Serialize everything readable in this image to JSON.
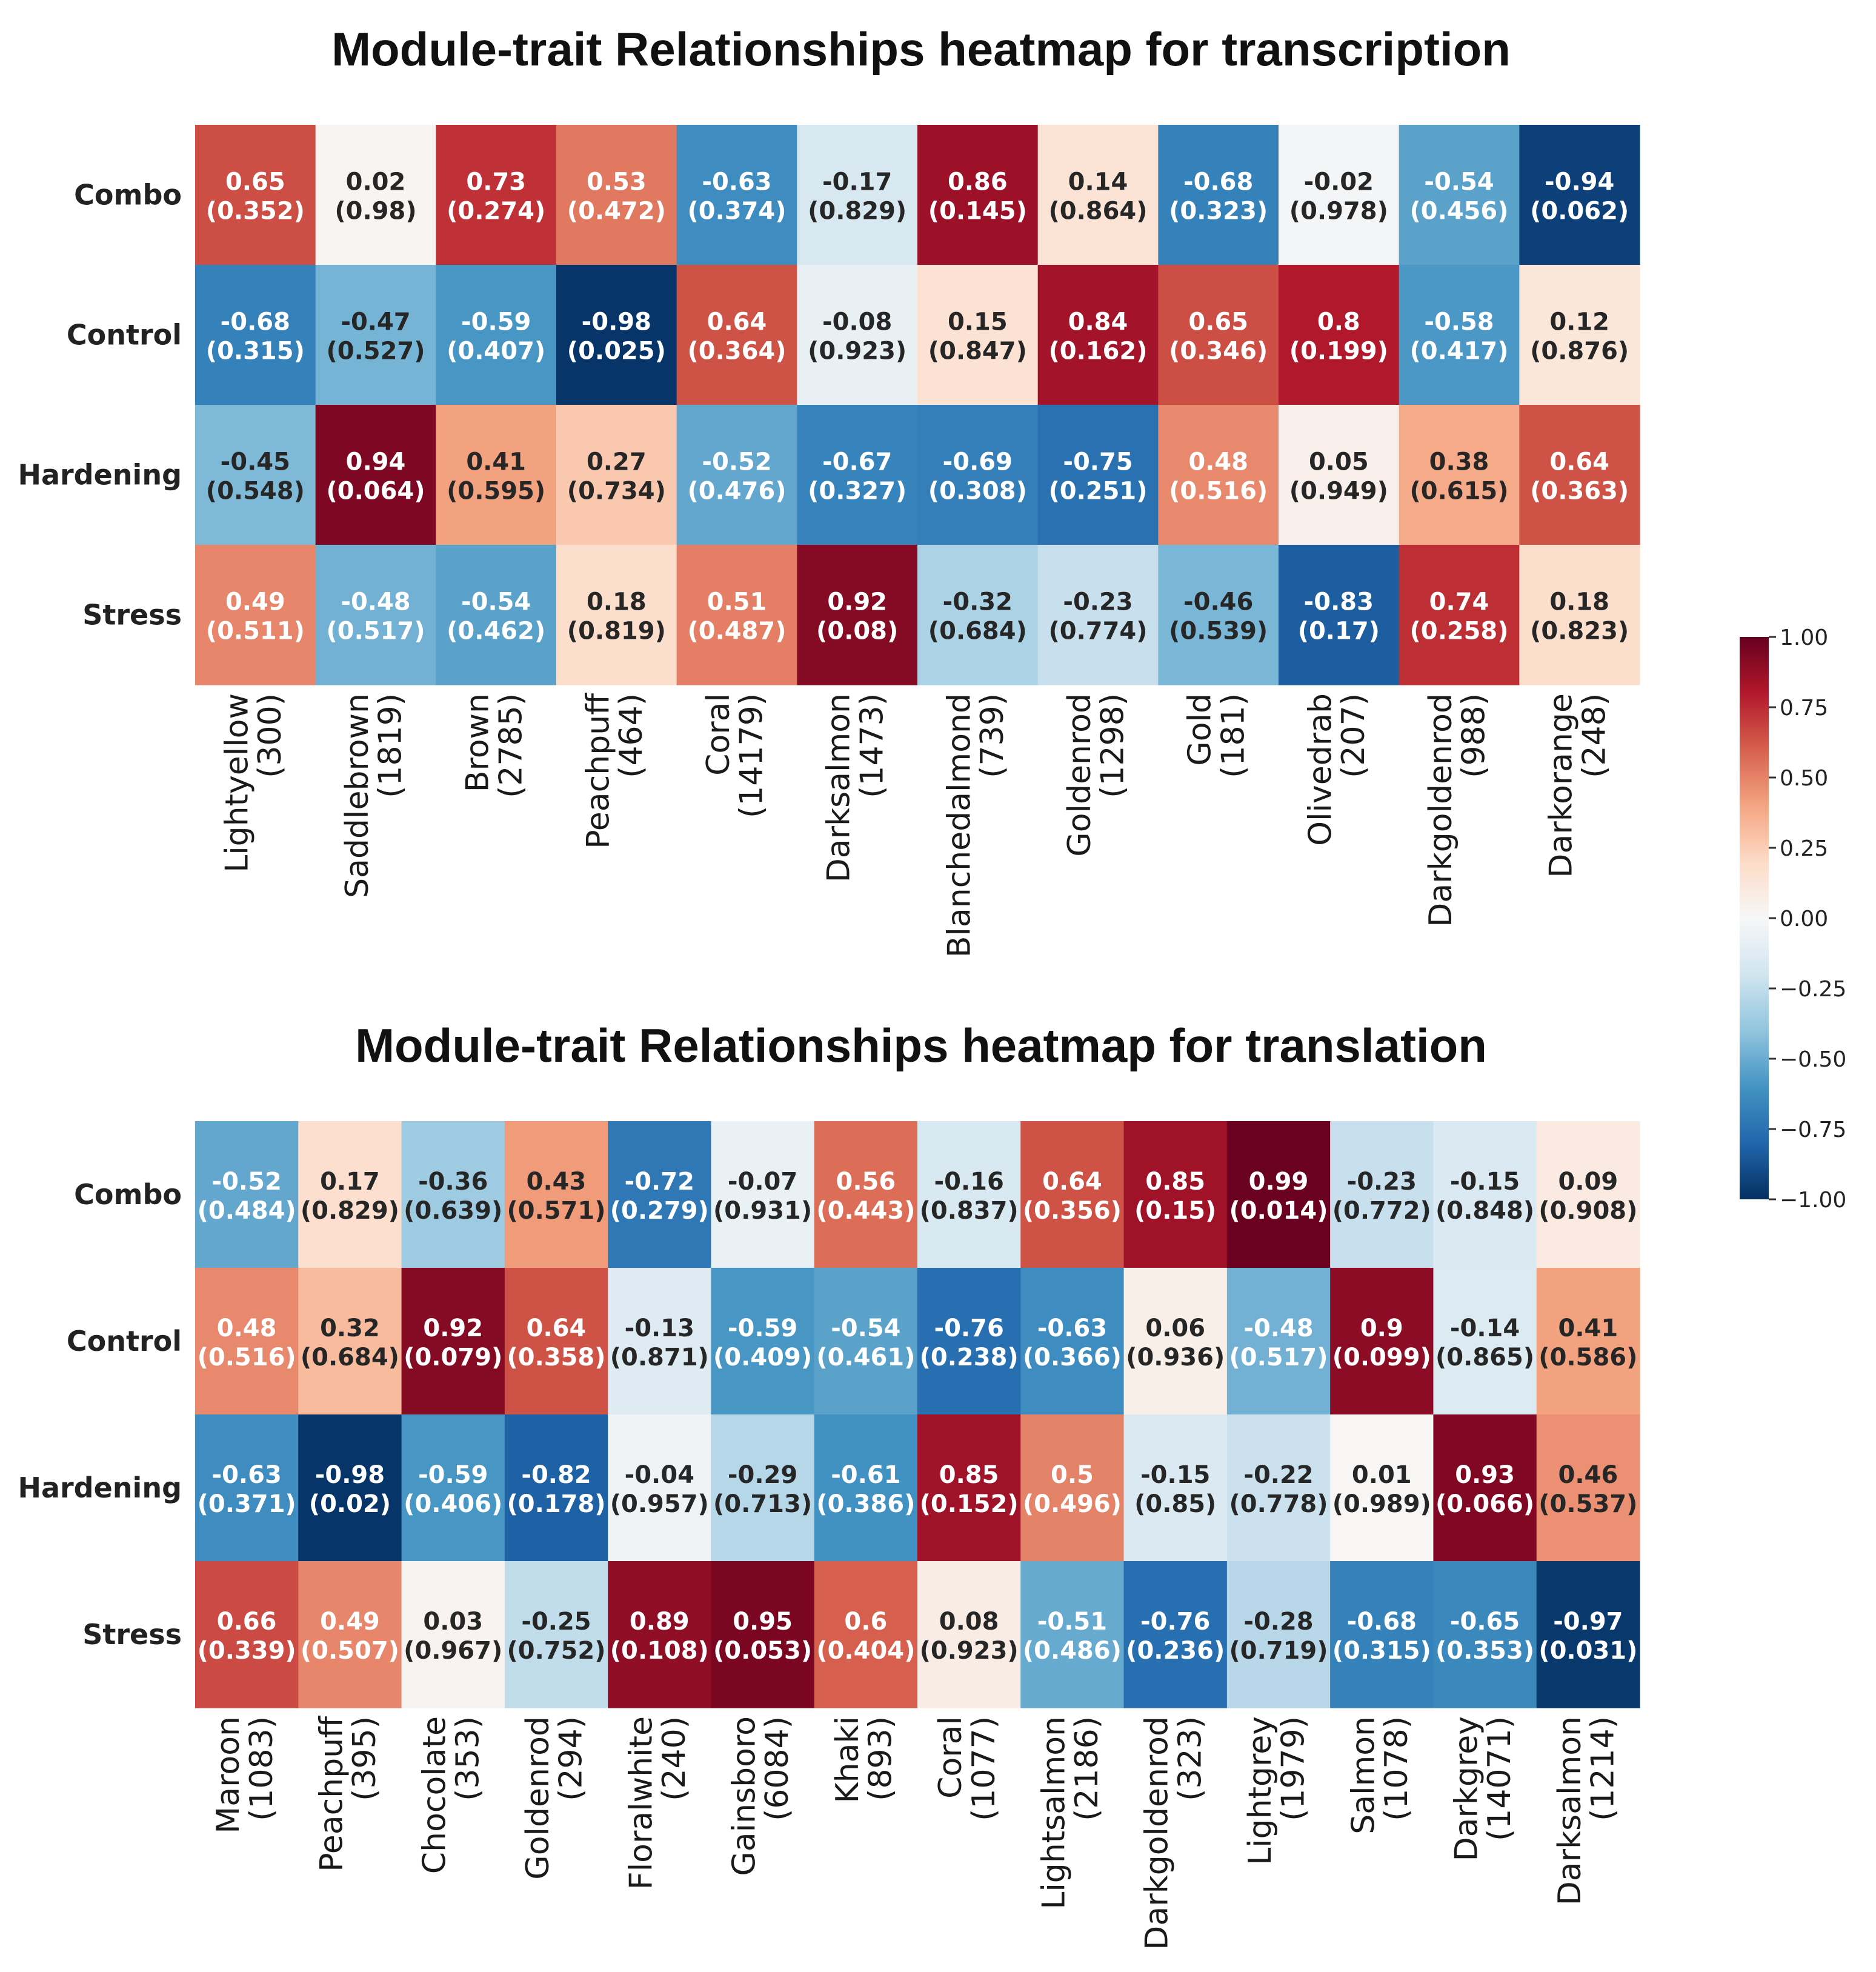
{
  "chart_data": [
    {
      "type": "heatmap",
      "title": "Module-trait Relationships heatmap for transcription",
      "rows": [
        "Combo",
        "Control",
        "Hardening",
        "Stress"
      ],
      "columns": [
        {
          "name": "Lightyellow",
          "count": "(300)"
        },
        {
          "name": "Saddlebrown",
          "count": "(1819)"
        },
        {
          "name": "Brown",
          "count": "(2785)"
        },
        {
          "name": "Peachpuff",
          "count": "(464)"
        },
        {
          "name": "Coral",
          "count": "(14179)"
        },
        {
          "name": "Darksalmon",
          "count": "(1473)"
        },
        {
          "name": "Blanchedalmond",
          "count": "(739)"
        },
        {
          "name": "Goldenrod",
          "count": "(1298)"
        },
        {
          "name": "Gold",
          "count": "(181)"
        },
        {
          "name": "Olivedrab",
          "count": "(207)"
        },
        {
          "name": "Darkgoldenrod",
          "count": "(988)"
        },
        {
          "name": "Darkorange",
          "count": "(248)"
        }
      ],
      "values": [
        [
          0.65,
          0.02,
          0.73,
          0.53,
          -0.63,
          -0.17,
          0.86,
          0.14,
          -0.68,
          -0.02,
          -0.54,
          -0.94
        ],
        [
          -0.68,
          -0.47,
          -0.59,
          -0.98,
          0.64,
          -0.08,
          0.15,
          0.84,
          0.65,
          0.8,
          -0.58,
          0.12
        ],
        [
          -0.45,
          0.94,
          0.41,
          0.27,
          -0.52,
          -0.67,
          -0.69,
          -0.75,
          0.48,
          0.05,
          0.38,
          0.64
        ],
        [
          0.49,
          -0.48,
          -0.54,
          0.18,
          0.51,
          0.92,
          -0.32,
          -0.23,
          -0.46,
          -0.83,
          0.74,
          0.18
        ]
      ],
      "pvalues": [
        [
          "(0.352)",
          "(0.98)",
          "(0.274)",
          "(0.472)",
          "(0.374)",
          "(0.829)",
          "(0.145)",
          "(0.864)",
          "(0.323)",
          "(0.978)",
          "(0.456)",
          "(0.062)"
        ],
        [
          "(0.315)",
          "(0.527)",
          "(0.407)",
          "(0.025)",
          "(0.364)",
          "(0.923)",
          "(0.847)",
          "(0.162)",
          "(0.346)",
          "(0.199)",
          "(0.417)",
          "(0.876)"
        ],
        [
          "(0.548)",
          "(0.064)",
          "(0.595)",
          "(0.734)",
          "(0.476)",
          "(0.327)",
          "(0.308)",
          "(0.251)",
          "(0.516)",
          "(0.949)",
          "(0.615)",
          "(0.363)"
        ],
        [
          "(0.511)",
          "(0.517)",
          "(0.462)",
          "(0.819)",
          "(0.487)",
          "(0.08)",
          "(0.684)",
          "(0.774)",
          "(0.539)",
          "(0.17)",
          "(0.258)",
          "(0.823)"
        ]
      ]
    },
    {
      "type": "heatmap",
      "title": "Module-trait Relationships heatmap for translation",
      "rows": [
        "Combo",
        "Control",
        "Hardening",
        "Stress"
      ],
      "columns": [
        {
          "name": "Maroon",
          "count": "(1083)"
        },
        {
          "name": "Peachpuff",
          "count": "(395)"
        },
        {
          "name": "Chocolate",
          "count": "(353)"
        },
        {
          "name": "Goldenrod",
          "count": "(294)"
        },
        {
          "name": "Floralwhite",
          "count": "(240)"
        },
        {
          "name": "Gainsboro",
          "count": "(6084)"
        },
        {
          "name": "Khaki",
          "count": "(893)"
        },
        {
          "name": "Coral",
          "count": "(1077)"
        },
        {
          "name": "Lightsalmon",
          "count": "(2186)"
        },
        {
          "name": "Darkgoldenrod",
          "count": "(323)"
        },
        {
          "name": "Lightgrey",
          "count": "(1979)"
        },
        {
          "name": "Salmon",
          "count": "(1078)"
        },
        {
          "name": "Darkgrey",
          "count": "(14071)"
        },
        {
          "name": "Darksalmon",
          "count": "(1214)"
        }
      ],
      "values": [
        [
          -0.52,
          0.17,
          -0.36,
          0.43,
          -0.72,
          -0.07,
          0.56,
          -0.16,
          0.64,
          0.85,
          0.99,
          -0.23,
          -0.15,
          0.09
        ],
        [
          0.48,
          0.32,
          0.92,
          0.64,
          -0.13,
          -0.59,
          -0.54,
          -0.76,
          -0.63,
          0.06,
          -0.48,
          0.9,
          -0.14,
          0.41
        ],
        [
          -0.63,
          -0.98,
          -0.59,
          -0.82,
          -0.04,
          -0.29,
          -0.61,
          0.85,
          0.5,
          -0.15,
          -0.22,
          0.01,
          0.93,
          0.46
        ],
        [
          0.66,
          0.49,
          0.03,
          -0.25,
          0.89,
          0.95,
          0.6,
          0.08,
          -0.51,
          -0.76,
          -0.28,
          -0.68,
          -0.65,
          -0.97
        ]
      ],
      "pvalues": [
        [
          "(0.484)",
          "(0.829)",
          "(0.639)",
          "(0.571)",
          "(0.279)",
          "(0.931)",
          "(0.443)",
          "(0.837)",
          "(0.356)",
          "(0.15)",
          "(0.014)",
          "(0.772)",
          "(0.848)",
          "(0.908)"
        ],
        [
          "(0.516)",
          "(0.684)",
          "(0.079)",
          "(0.358)",
          "(0.871)",
          "(0.409)",
          "(0.461)",
          "(0.238)",
          "(0.366)",
          "(0.936)",
          "(0.517)",
          "(0.099)",
          "(0.865)",
          "(0.586)"
        ],
        [
          "(0.371)",
          "(0.02)",
          "(0.406)",
          "(0.178)",
          "(0.957)",
          "(0.713)",
          "(0.386)",
          "(0.152)",
          "(0.496)",
          "(0.85)",
          "(0.778)",
          "(0.989)",
          "(0.066)",
          "(0.537)"
        ],
        [
          "(0.339)",
          "(0.507)",
          "(0.967)",
          "(0.752)",
          "(0.108)",
          "(0.053)",
          "(0.404)",
          "(0.923)",
          "(0.486)",
          "(0.236)",
          "(0.719)",
          "(0.315)",
          "(0.353)",
          "(0.031)"
        ]
      ]
    }
  ],
  "colorbar": {
    "range": [
      -1.0,
      1.0
    ],
    "ticks": [
      "1.00",
      "0.75",
      "0.50",
      "0.25",
      "0.00",
      "−0.25",
      "−0.50",
      "−0.75",
      "−1.00"
    ],
    "tick_values": [
      1.0,
      0.75,
      0.5,
      0.25,
      0.0,
      -0.25,
      -0.5,
      -0.75,
      -1.0
    ],
    "colormap": "RdBu_r",
    "stops": [
      "#053061",
      "#2166ac",
      "#4393c3",
      "#92c5de",
      "#d1e5f0",
      "#f7f7f7",
      "#fddbc7",
      "#f4a582",
      "#d6604d",
      "#b2182b",
      "#67001f"
    ]
  }
}
